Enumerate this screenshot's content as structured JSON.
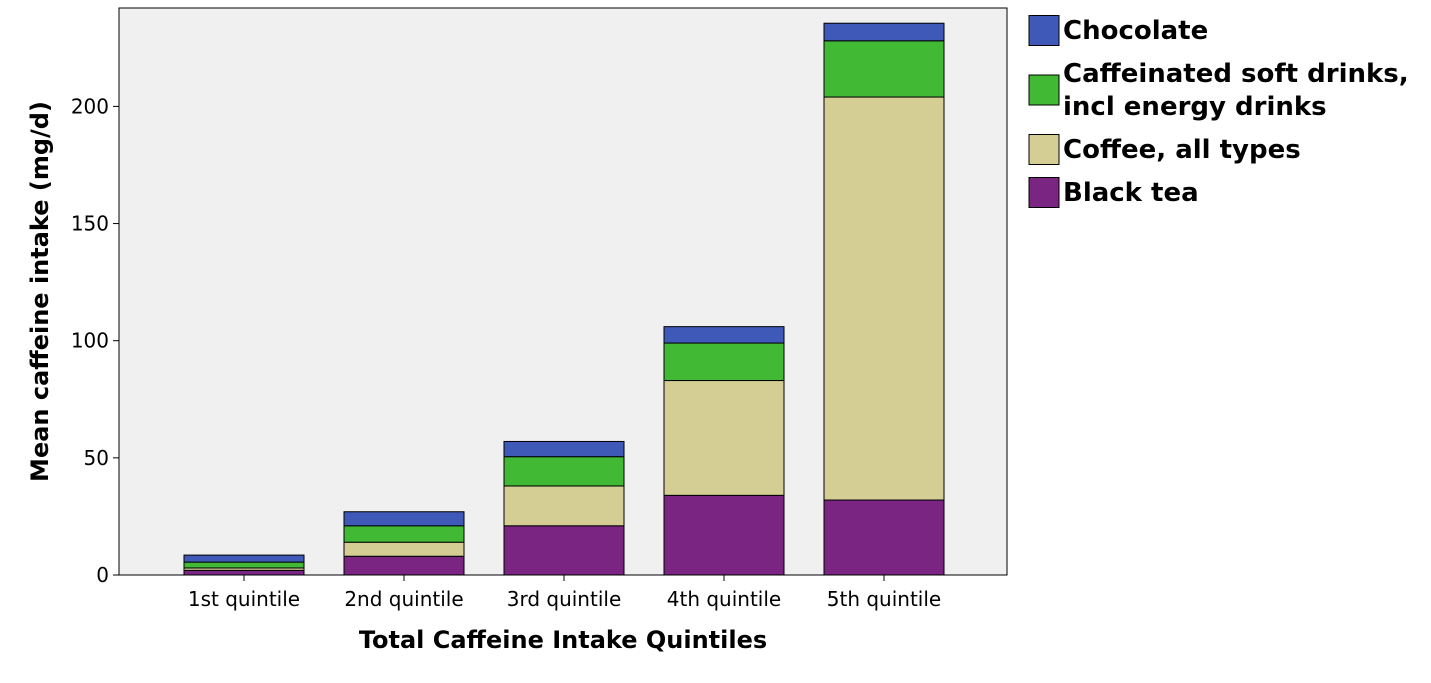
{
  "chart_data": {
    "type": "bar",
    "stacked": true,
    "xlabel": "Total Caffeine Intake Quintiles",
    "ylabel": "Mean caffeine intake (mg/d)",
    "categories": [
      "1st quintile",
      "2nd quintile",
      "3rd quintile",
      "4th quintile",
      "5th quintile"
    ],
    "ylim": [
      0,
      242
    ],
    "yticks": [
      0,
      50,
      100,
      150,
      200
    ],
    "ytick_labels": [
      "0",
      "50",
      "100",
      "150",
      "200"
    ],
    "grid": false,
    "legend_position": "right",
    "background_color": "#f0f0f0",
    "series": [
      {
        "name": "Black tea",
        "color": "#7a2582",
        "values": [
          2,
          8,
          21,
          34,
          32
        ]
      },
      {
        "name": "Coffee, all types",
        "color": "#d4ce94",
        "values": [
          1,
          6,
          17,
          49,
          172
        ]
      },
      {
        "name": "Caffeinated soft drinks, incl energy drinks",
        "color": "#42b935",
        "values": [
          2.5,
          7,
          12.5,
          16,
          24
        ]
      },
      {
        "name": "Chocolate",
        "color": "#3e59b7",
        "values": [
          3,
          6,
          6.5,
          7,
          7.5
        ]
      }
    ],
    "legend_entries": [
      {
        "lines": [
          "Chocolate"
        ],
        "color": "#3e59b7"
      },
      {
        "lines": [
          "Caffeinated soft drinks,",
          "incl energy drinks"
        ],
        "color": "#42b935"
      },
      {
        "lines": [
          "Coffee, all types"
        ],
        "color": "#d4ce94"
      },
      {
        "lines": [
          "Black tea"
        ],
        "color": "#7a2582"
      }
    ]
  }
}
